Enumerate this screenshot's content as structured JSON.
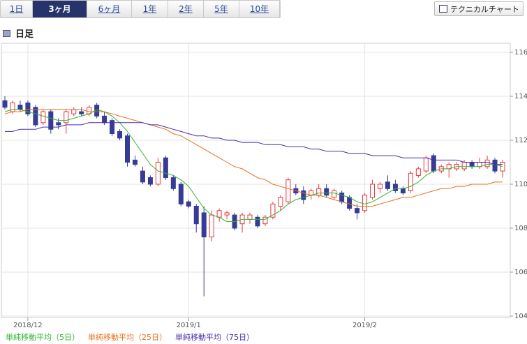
{
  "tabs": [
    "1日",
    "3ヶ月",
    "6ヶ月",
    "1年",
    "2年",
    "5年",
    "10年"
  ],
  "selected_tab": 1,
  "button": "テクニカルチャート",
  "section_title": "日足",
  "chart_data": {
    "type": "candlestick",
    "categories": [
      null,
      null,
      null,
      "2018/12",
      null,
      null,
      null,
      null,
      null,
      null,
      null,
      null,
      null,
      null,
      null,
      null,
      null,
      null,
      null,
      null,
      null,
      null,
      null,
      null,
      "2019/1",
      null,
      null,
      null,
      null,
      null,
      null,
      null,
      null,
      null,
      null,
      null,
      null,
      null,
      null,
      null,
      null,
      null,
      null,
      null,
      null,
      null,
      null,
      "2019/2",
      null,
      null,
      null,
      null,
      null,
      null,
      null,
      null,
      null,
      null,
      null,
      null,
      null,
      null,
      null,
      null,
      null,
      null
    ],
    "open": [
      113.8,
      113.3,
      113.6,
      113.7,
      113.5,
      112.8,
      113.3,
      112.8,
      112.8,
      113.2,
      113.3,
      113.2,
      113.6,
      113.1,
      112.9,
      112.4,
      112.2,
      111.1,
      110.6,
      110.3,
      110.0,
      111.2,
      110.3,
      110.0,
      109.2,
      109.0,
      108.7,
      107.6,
      108.5,
      108.6,
      108.6,
      108.2,
      108.4,
      108.5,
      108.2,
      108.5,
      109.0,
      109.2,
      109.8,
      109.7,
      109.5,
      109.5,
      109.8,
      109.4,
      109.6,
      109.4,
      108.9,
      108.8,
      109.4,
      109.8,
      110.1,
      110.0,
      109.8,
      109.7,
      110.4,
      110.6,
      111.3,
      110.6,
      110.7,
      110.7,
      110.7,
      111.0,
      110.8,
      110.8,
      111.1,
      110.6
    ],
    "high": [
      114.0,
      113.8,
      113.8,
      113.8,
      113.6,
      113.4,
      113.4,
      113.0,
      113.4,
      113.5,
      113.5,
      113.6,
      113.7,
      113.3,
      113.0,
      112.5,
      112.3,
      111.3,
      110.8,
      110.4,
      111.2,
      111.3,
      110.4,
      110.1,
      109.3,
      109.1,
      109.0,
      108.8,
      108.9,
      108.8,
      108.7,
      108.7,
      108.7,
      108.6,
      108.6,
      109.2,
      109.5,
      110.3,
      110.0,
      109.9,
      109.8,
      110.0,
      110.0,
      109.8,
      109.7,
      109.5,
      109.1,
      109.6,
      110.2,
      110.1,
      110.4,
      110.2,
      109.9,
      110.6,
      110.8,
      111.3,
      111.4,
      110.9,
      111.0,
      111.0,
      111.1,
      111.1,
      111.2,
      111.3,
      111.2,
      111.1
    ],
    "low": [
      113.4,
      113.2,
      113.3,
      113.1,
      112.6,
      112.7,
      112.3,
      112.5,
      112.3,
      113.1,
      113.1,
      113.1,
      113.0,
      112.7,
      112.2,
      112.0,
      110.8,
      110.8,
      110.0,
      109.9,
      109.9,
      110.2,
      109.7,
      109.0,
      108.9,
      107.8,
      104.9,
      107.4,
      108.3,
      108.4,
      107.9,
      107.8,
      108.2,
      108.0,
      108.1,
      108.4,
      108.8,
      109.1,
      109.5,
      109.1,
      109.3,
      109.4,
      109.4,
      109.3,
      109.1,
      108.8,
      108.4,
      108.7,
      109.3,
      109.6,
      109.7,
      109.6,
      109.5,
      109.6,
      110.3,
      110.5,
      110.5,
      110.5,
      110.3,
      110.6,
      110.6,
      110.7,
      110.7,
      110.7,
      110.5,
      110.3
    ],
    "close": [
      113.5,
      113.7,
      113.4,
      113.2,
      112.7,
      113.3,
      112.5,
      112.7,
      113.3,
      113.4,
      113.2,
      113.5,
      113.1,
      112.8,
      112.3,
      112.1,
      111.0,
      110.9,
      110.1,
      110.0,
      111.0,
      110.3,
      109.8,
      109.1,
      109.0,
      108.2,
      107.6,
      108.6,
      108.8,
      108.7,
      108.0,
      108.6,
      108.6,
      108.1,
      108.5,
      109.1,
      109.4,
      110.2,
      109.6,
      109.3,
      109.7,
      109.8,
      109.5,
      109.7,
      109.2,
      108.9,
      108.7,
      109.5,
      110.0,
      110.0,
      109.8,
      109.7,
      109.6,
      110.5,
      110.7,
      111.2,
      110.6,
      110.8,
      110.9,
      110.9,
      111.0,
      110.8,
      111.0,
      111.1,
      110.6,
      111.0
    ],
    "up_color": "#e8383d",
    "down_color": "#363c96",
    "series": [
      {
        "name": "単純移動平均（5日）",
        "color": "#2fb52f",
        "values": [
          113.3,
          113.4,
          113.4,
          113.3,
          113.2,
          113.1,
          113.0,
          112.9,
          112.9,
          113.0,
          113.1,
          113.2,
          113.4,
          113.3,
          113.1,
          112.8,
          112.4,
          111.9,
          111.4,
          110.9,
          110.6,
          110.5,
          110.4,
          110.2,
          109.9,
          109.4,
          108.9,
          108.6,
          108.5,
          108.3,
          108.3,
          108.4,
          108.4,
          108.4,
          108.4,
          108.6,
          108.8,
          109.1,
          109.3,
          109.4,
          109.5,
          109.6,
          109.6,
          109.6,
          109.5,
          109.4,
          109.2,
          109.1,
          109.2,
          109.4,
          109.6,
          109.8,
          109.8,
          109.9,
          110.1,
          110.4,
          110.6,
          110.7,
          110.7,
          110.8,
          110.8,
          110.8,
          110.8,
          110.9,
          110.9,
          110.8
        ]
      },
      {
        "name": "単純移動平均（25日）",
        "color": "#e8701a",
        "values": [
          113.2,
          113.3,
          113.3,
          113.4,
          113.4,
          113.4,
          113.4,
          113.4,
          113.4,
          113.4,
          113.4,
          113.3,
          113.3,
          113.3,
          113.2,
          113.1,
          113.0,
          112.9,
          112.8,
          112.7,
          112.6,
          112.5,
          112.3,
          112.2,
          112.0,
          111.8,
          111.6,
          111.4,
          111.2,
          111.0,
          110.8,
          110.7,
          110.5,
          110.3,
          110.2,
          110.0,
          109.9,
          109.8,
          109.7,
          109.6,
          109.5,
          109.5,
          109.4,
          109.3,
          109.2,
          109.1,
          109.0,
          109.0,
          109.0,
          109.1,
          109.2,
          109.3,
          109.4,
          109.4,
          109.5,
          109.6,
          109.7,
          109.8,
          109.8,
          109.9,
          109.9,
          110.0,
          110.0,
          110.0,
          110.1,
          110.1
        ]
      },
      {
        "name": "単純移動平均（75日）",
        "color": "#4b2aa8",
        "values": [
          112.4,
          112.4,
          112.5,
          112.5,
          112.5,
          112.6,
          112.6,
          112.6,
          112.7,
          112.7,
          112.7,
          112.8,
          112.8,
          112.8,
          112.8,
          112.8,
          112.8,
          112.8,
          112.8,
          112.7,
          112.7,
          112.6,
          112.5,
          112.4,
          112.3,
          112.2,
          112.2,
          112.1,
          112.1,
          112.0,
          112.0,
          111.9,
          111.9,
          111.9,
          111.8,
          111.8,
          111.8,
          111.7,
          111.7,
          111.7,
          111.6,
          111.6,
          111.5,
          111.5,
          111.5,
          111.4,
          111.4,
          111.4,
          111.3,
          111.3,
          111.3,
          111.3,
          111.2,
          111.2,
          111.2,
          111.2,
          111.1,
          111.1,
          111.1,
          111.1,
          111.0,
          111.0,
          111.0,
          111.0,
          110.9,
          110.9
        ]
      }
    ],
    "ylim": [
      104,
      116
    ],
    "yticks": [
      104,
      106,
      108,
      110,
      112,
      114,
      116
    ],
    "grid": true
  }
}
